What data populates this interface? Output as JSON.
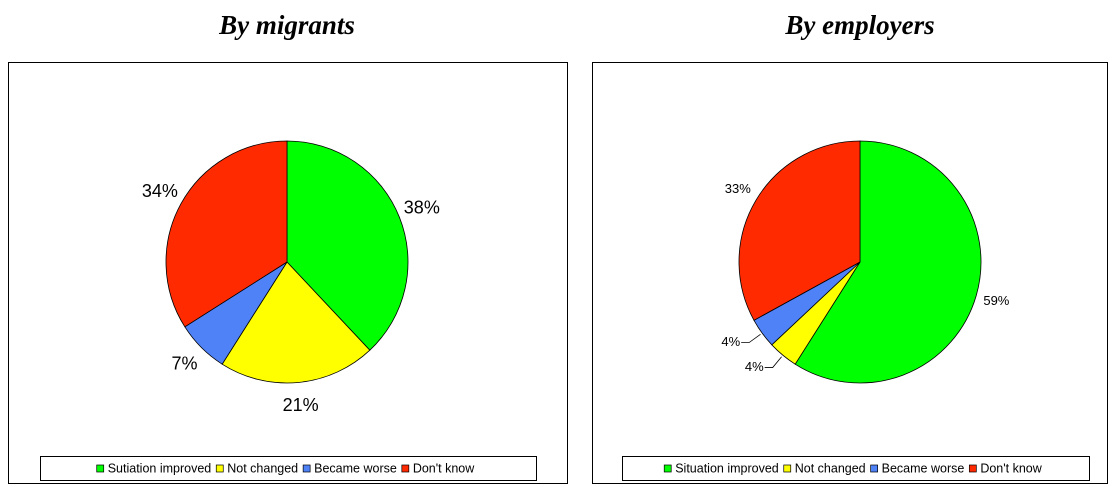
{
  "chart_data": [
    {
      "type": "pie",
      "title": "By migrants",
      "categories": [
        "Sutiation improved",
        "Not changed",
        "Became worse",
        "Don't know"
      ],
      "values": [
        38,
        21,
        7,
        34
      ],
      "value_labels": [
        "38%",
        "21%",
        "7%",
        "34%"
      ],
      "colors": [
        "#00ff00",
        "#ffff00",
        "#4f81f7",
        "#ff2a00"
      ],
      "legend": "bottom"
    },
    {
      "type": "pie",
      "title": "By employers",
      "categories": [
        "Situation improved",
        "Not changed",
        "Became worse",
        "Don't know"
      ],
      "values": [
        59,
        4,
        4,
        33
      ],
      "value_labels": [
        "59%",
        "4%",
        "4%",
        "33%"
      ],
      "colors": [
        "#00ff00",
        "#ffff00",
        "#4f81f7",
        "#ff2a00"
      ],
      "legend": "bottom"
    }
  ]
}
